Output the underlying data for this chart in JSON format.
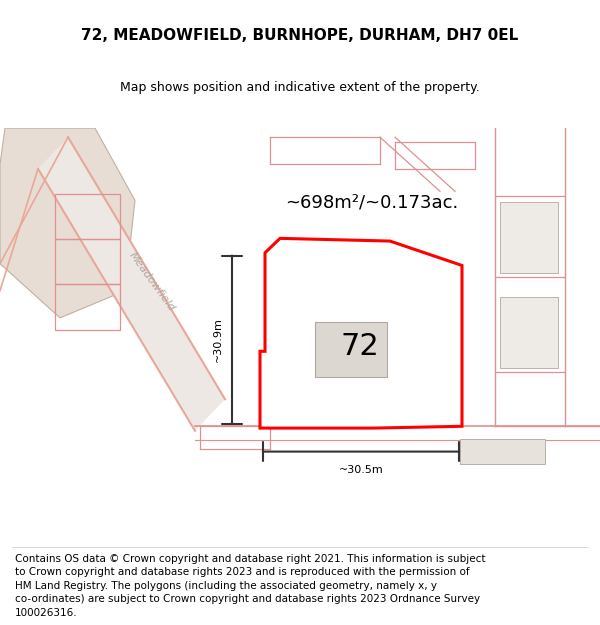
{
  "title_line1": "72, MEADOWFIELD, BURNHOPE, DURHAM, DH7 0EL",
  "title_line2": "Map shows position and indicative extent of the property.",
  "footer_wrapped": "Contains OS data © Crown copyright and database right 2021. This information is subject\nto Crown copyright and database rights 2023 and is reproduced with the permission of\nHM Land Registry. The polygons (including the associated geometry, namely x, y\nco-ordinates) are subject to Crown copyright and database rights 2023 Ordnance Survey\n100026316.",
  "area_label": "~698m²/~0.173ac.",
  "number_label": "72",
  "dim_h": "~30.9m",
  "dim_w": "~30.5m",
  "street_label": "Meadowfield",
  "bg_color": "#f2ece8",
  "plot_color": "#ff0000",
  "road_pink": "#e8a898",
  "parcel_pink": "#e09090",
  "dim_color": "#333333",
  "title_fontsize": 11,
  "subtitle_fontsize": 9,
  "area_fontsize": 13,
  "number_fontsize": 22,
  "footer_fontsize": 7.5,
  "street_fontsize": 8
}
